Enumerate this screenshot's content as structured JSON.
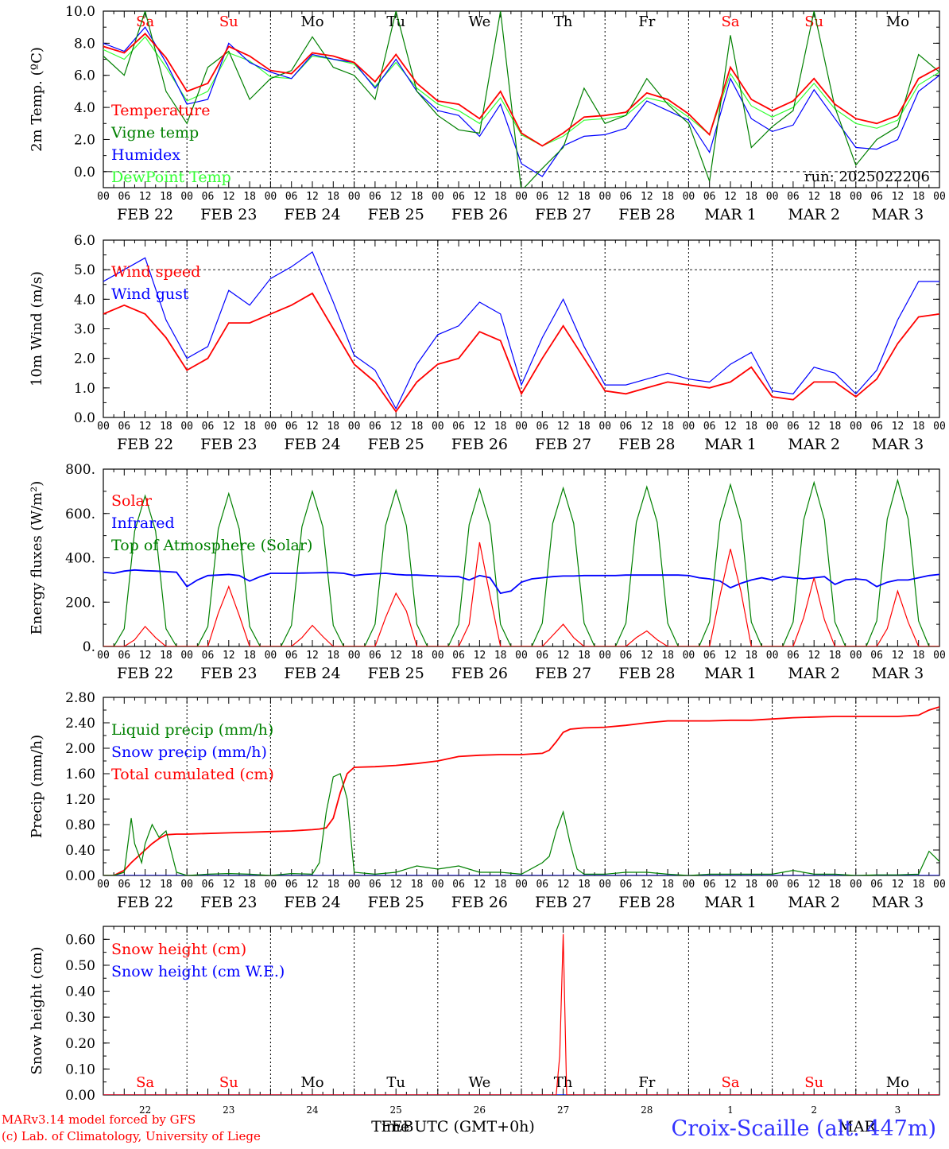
{
  "run_label": "run: 2025022206",
  "footer": {
    "model": "MARv3.14 model forced by GFS",
    "copyright": "(c) Lab. of Climatology, University of Liege",
    "xlabel": "Time UTC (GMT+0h)",
    "station": "Croix-Scaille (alt. 447m)",
    "feb_label": "FEB",
    "mar_label": "MAR"
  },
  "colors": {
    "red": "#ff0000",
    "green": "#008000",
    "blue": "#0000ff",
    "lightgreen": "#33ff33"
  },
  "days": {
    "weekday": [
      "Sa",
      "Su",
      "Mo",
      "Tu",
      "We",
      "Th",
      "Fr",
      "Sa",
      "Su",
      "Mo"
    ],
    "weekday_red": [
      true,
      true,
      false,
      false,
      false,
      false,
      false,
      true,
      true,
      false
    ],
    "date_labels": [
      "FEB 22",
      "FEB 23",
      "FEB 24",
      "FEB 25",
      "FEB 26",
      "FEB 27",
      "FEB 28",
      "MAR  1",
      "MAR  2",
      "MAR  3"
    ],
    "day_numbers": [
      "22",
      "23",
      "24",
      "25",
      "26",
      "27",
      "28",
      "1",
      "2",
      "3"
    ],
    "hour_ticks": [
      "00",
      "06",
      "12",
      "18"
    ],
    "last_tick": "00"
  },
  "chart_data": [
    {
      "type": "line",
      "ylabel": "2m Temp. (ºC)",
      "ylim": [
        -1.0,
        10.0
      ],
      "yticks": [
        "10.0",
        "8.0",
        "6.0",
        "4.0",
        "2.0",
        "0.0"
      ],
      "ytick_values": [
        10,
        8,
        6,
        4,
        2,
        0
      ],
      "x_hours": [
        0,
        6,
        12,
        18,
        24,
        30,
        36,
        42,
        48,
        54,
        60,
        66,
        72,
        78,
        84,
        90,
        96,
        102,
        108,
        114,
        120,
        126,
        132,
        138,
        144,
        150,
        156,
        162,
        168,
        174,
        180,
        186,
        192,
        198,
        204,
        210,
        216,
        222,
        228,
        234,
        240
      ],
      "series": [
        {
          "name": "Temperature",
          "color": "#ff0000",
          "values": [
            7.8,
            7.4,
            8.6,
            7.1,
            5.0,
            5.5,
            7.8,
            7.2,
            6.3,
            6.1,
            7.4,
            7.2,
            6.8,
            5.6,
            7.3,
            5.5,
            4.4,
            4.2,
            3.3,
            5.0,
            2.4,
            1.6,
            2.4,
            3.4,
            3.5,
            3.7,
            4.9,
            4.5,
            3.6,
            2.3,
            6.5,
            4.5,
            3.8,
            4.4,
            5.8,
            4.2,
            3.3,
            3.0,
            3.5,
            5.8,
            6.5
          ]
        },
        {
          "name": "Vigne temp",
          "color": "#008000",
          "values": [
            7.2,
            6.0,
            10.0,
            5.0,
            3.0,
            6.5,
            7.5,
            4.5,
            5.8,
            6.3,
            8.4,
            6.5,
            6.0,
            4.5,
            10.0,
            5.0,
            3.5,
            2.6,
            2.4,
            10.0,
            -1.2,
            0.2,
            1.5,
            5.2,
            3.0,
            3.5,
            5.8,
            4.2,
            3.0,
            -0.6,
            8.5,
            1.5,
            2.8,
            3.8,
            10.0,
            4.0,
            0.4,
            2.0,
            2.8,
            7.3,
            6.2
          ]
        },
        {
          "name": "Humidex",
          "color": "#0000ff",
          "values": [
            8.0,
            7.5,
            9.0,
            6.8,
            4.2,
            4.5,
            8.0,
            6.8,
            6.2,
            5.8,
            7.3,
            7.0,
            6.8,
            5.2,
            7.0,
            5.0,
            3.8,
            3.5,
            2.2,
            4.2,
            0.5,
            -0.3,
            1.6,
            2.2,
            2.3,
            2.7,
            4.4,
            3.8,
            3.2,
            1.2,
            5.8,
            3.3,
            2.5,
            2.9,
            5.1,
            3.3,
            1.5,
            1.4,
            2.0,
            5.0,
            6.0
          ]
        },
        {
          "name": "DewPoint Temp",
          "color": "#33ff33",
          "values": [
            7.6,
            7.0,
            8.4,
            6.5,
            4.4,
            5.0,
            7.4,
            6.9,
            5.9,
            5.8,
            7.2,
            7.0,
            6.7,
            5.3,
            6.8,
            5.2,
            4.2,
            3.8,
            3.0,
            4.6,
            2.3,
            1.6,
            2.2,
            3.2,
            3.3,
            3.5,
            4.6,
            4.3,
            3.4,
            2.3,
            6.1,
            4.1,
            3.4,
            4.0,
            5.5,
            3.9,
            3.0,
            2.7,
            3.2,
            5.4,
            6.2
          ]
        }
      ]
    },
    {
      "type": "line",
      "ylabel": "10m Wind (m/s)",
      "ylim": [
        0,
        6.0
      ],
      "yticks": [
        "6.0",
        "5.0",
        "4.0",
        "3.0",
        "2.0",
        "1.0",
        "0.0"
      ],
      "ytick_values": [
        6,
        5,
        4,
        3,
        2,
        1,
        0
      ],
      "x_hours": [
        0,
        6,
        12,
        18,
        24,
        30,
        36,
        42,
        48,
        54,
        60,
        66,
        72,
        78,
        84,
        90,
        96,
        102,
        108,
        114,
        120,
        126,
        132,
        138,
        144,
        150,
        156,
        162,
        168,
        174,
        180,
        186,
        192,
        198,
        204,
        210,
        216,
        222,
        228,
        234,
        240
      ],
      "series": [
        {
          "name": "Wind speed",
          "color": "#ff0000",
          "values": [
            3.5,
            3.8,
            3.5,
            2.7,
            1.6,
            2.0,
            3.2,
            3.2,
            3.5,
            3.8,
            4.2,
            3.0,
            1.8,
            1.2,
            0.2,
            1.2,
            1.8,
            2.0,
            2.9,
            2.6,
            0.8,
            2.0,
            3.1,
            2.0,
            0.9,
            0.8,
            1.0,
            1.2,
            1.1,
            1.0,
            1.2,
            1.7,
            0.7,
            0.6,
            1.2,
            1.2,
            0.7,
            1.3,
            2.5,
            3.4,
            3.5
          ]
        },
        {
          "name": "Wind gust",
          "color": "#0000ff",
          "values": [
            4.6,
            5.0,
            5.4,
            3.3,
            2.0,
            2.4,
            4.3,
            3.8,
            4.7,
            5.1,
            5.6,
            3.9,
            2.1,
            1.6,
            0.3,
            1.8,
            2.8,
            3.1,
            3.9,
            3.5,
            1.1,
            2.7,
            4.0,
            2.4,
            1.1,
            1.1,
            1.3,
            1.5,
            1.3,
            1.2,
            1.8,
            2.2,
            0.9,
            0.8,
            1.7,
            1.5,
            0.8,
            1.6,
            3.3,
            4.6,
            4.6
          ]
        }
      ]
    },
    {
      "type": "line",
      "ylabel": "Energy fluxes (W/m²)",
      "ylim": [
        0,
        800
      ],
      "yticks": [
        "800.",
        "600.",
        "400.",
        "200.",
        "0."
      ],
      "ytick_values": [
        800,
        600,
        400,
        200,
        0
      ],
      "x_hours": [
        0,
        3,
        6,
        9,
        12,
        15,
        18,
        21,
        24,
        27,
        30,
        33,
        36,
        39,
        42,
        45,
        48,
        51,
        54,
        57,
        60,
        63,
        66,
        69,
        72,
        75,
        78,
        81,
        84,
        87,
        90,
        93,
        96,
        99,
        102,
        105,
        108,
        111,
        114,
        117,
        120,
        123,
        126,
        129,
        132,
        135,
        138,
        141,
        144,
        147,
        150,
        153,
        156,
        159,
        162,
        165,
        168,
        171,
        174,
        177,
        180,
        183,
        186,
        189,
        192,
        195,
        198,
        201,
        204,
        207,
        210,
        213,
        216,
        219,
        222,
        225,
        228,
        231,
        234,
        237,
        240
      ],
      "series": [
        {
          "name": "Solar",
          "color": "#ff0000",
          "values": [
            0,
            0,
            0,
            30,
            90,
            40,
            0,
            0,
            0,
            0,
            0,
            150,
            270,
            140,
            0,
            0,
            0,
            0,
            0,
            40,
            95,
            45,
            0,
            0,
            0,
            0,
            0,
            130,
            240,
            160,
            0,
            0,
            0,
            0,
            0,
            100,
            470,
            230,
            0,
            0,
            0,
            0,
            0,
            50,
            100,
            40,
            0,
            0,
            0,
            0,
            0,
            40,
            70,
            30,
            0,
            0,
            0,
            0,
            0,
            230,
            440,
            250,
            0,
            0,
            0,
            0,
            0,
            130,
            310,
            120,
            0,
            0,
            0,
            0,
            0,
            80,
            250,
            110,
            0,
            0,
            0
          ]
        },
        {
          "name": "Infrared",
          "color": "#0000ff",
          "values": [
            335,
            330,
            340,
            345,
            342,
            340,
            338,
            335,
            270,
            300,
            320,
            322,
            325,
            320,
            295,
            315,
            330,
            330,
            330,
            331,
            332,
            333,
            333,
            330,
            320,
            325,
            328,
            330,
            325,
            322,
            322,
            320,
            318,
            316,
            315,
            300,
            320,
            310,
            240,
            250,
            290,
            305,
            310,
            315,
            318,
            318,
            320,
            320,
            320,
            320,
            322,
            322,
            322,
            322,
            322,
            322,
            320,
            310,
            305,
            295,
            265,
            285,
            300,
            310,
            300,
            315,
            310,
            305,
            310,
            315,
            280,
            300,
            305,
            300,
            270,
            290,
            300,
            300,
            310,
            320,
            325
          ]
        },
        {
          "name": "Top of Atmosphere (Solar)",
          "color": "#008000",
          "values": [
            0,
            0,
            80,
            520,
            680,
            520,
            80,
            0,
            0,
            0,
            90,
            530,
            690,
            530,
            90,
            0,
            0,
            0,
            95,
            540,
            700,
            540,
            95,
            0,
            0,
            0,
            100,
            545,
            705,
            545,
            100,
            0,
            0,
            0,
            100,
            550,
            710,
            550,
            100,
            0,
            0,
            0,
            105,
            555,
            715,
            555,
            105,
            0,
            0,
            0,
            105,
            560,
            720,
            560,
            105,
            0,
            0,
            0,
            110,
            565,
            730,
            565,
            110,
            0,
            0,
            0,
            110,
            570,
            740,
            570,
            110,
            0,
            0,
            0,
            115,
            575,
            750,
            575,
            115,
            0,
            0
          ]
        }
      ]
    },
    {
      "type": "line",
      "ylabel": "Precip (mm/h)",
      "ylim": [
        0,
        2.8
      ],
      "yticks": [
        "2.80",
        "2.40",
        "2.00",
        "1.60",
        "1.20",
        "0.80",
        "0.40",
        "0.00"
      ],
      "ytick_values": [
        2.8,
        2.4,
        2.0,
        1.6,
        1.2,
        0.8,
        0.4,
        0.0
      ],
      "x_hours": [
        0,
        3,
        6,
        8,
        9,
        11,
        12,
        14,
        16,
        18,
        21,
        24,
        30,
        36,
        42,
        48,
        54,
        60,
        62,
        64,
        66,
        68,
        70,
        72,
        78,
        84,
        90,
        96,
        102,
        108,
        114,
        120,
        126,
        128,
        130,
        132,
        134,
        136,
        138,
        144,
        150,
        156,
        162,
        168,
        174,
        180,
        186,
        192,
        198,
        204,
        210,
        216,
        222,
        228,
        234,
        237,
        240
      ],
      "series": [
        {
          "name": "Liquid precip (mm/h)",
          "color": "#008000",
          "values": [
            0,
            0,
            0.05,
            0.9,
            0.5,
            0.2,
            0.5,
            0.8,
            0.6,
            0.7,
            0.05,
            0,
            0.02,
            0.03,
            0.02,
            0,
            0.03,
            0.02,
            0.2,
            1.0,
            1.55,
            1.6,
            1.2,
            0.05,
            0.02,
            0.05,
            0.15,
            0.1,
            0.15,
            0.05,
            0.05,
            0.02,
            0.2,
            0.3,
            0.7,
            1.0,
            0.5,
            0.1,
            0.02,
            0.02,
            0.05,
            0.05,
            0.02,
            0,
            0.02,
            0.02,
            0.02,
            0.02,
            0.08,
            0.02,
            0.02,
            0,
            0.01,
            0.01,
            0.02,
            0.38,
            0.22
          ]
        },
        {
          "name": "Snow precip (mm/h)",
          "color": "#0000ff",
          "values": [
            0,
            0,
            0,
            0,
            0,
            0,
            0,
            0,
            0,
            0,
            0,
            0,
            0,
            0,
            0,
            0,
            0,
            0,
            0,
            0,
            0,
            0,
            0,
            0,
            0,
            0,
            0,
            0,
            0,
            0,
            0,
            0,
            0,
            0,
            0,
            0,
            0,
            0,
            0,
            0,
            0,
            0,
            0,
            0,
            0,
            0,
            0,
            0,
            0,
            0,
            0,
            0,
            0,
            0,
            0,
            0,
            0
          ]
        },
        {
          "name": "Total cumulated (cm)",
          "color": "#ff0000",
          "values": [
            0,
            0,
            0.08,
            0.2,
            0.25,
            0.35,
            0.4,
            0.5,
            0.58,
            0.64,
            0.65,
            0.65,
            0.66,
            0.67,
            0.68,
            0.69,
            0.7,
            0.72,
            0.73,
            0.75,
            0.9,
            1.3,
            1.6,
            1.7,
            1.71,
            1.73,
            1.76,
            1.8,
            1.87,
            1.89,
            1.9,
            1.9,
            1.92,
            1.97,
            2.1,
            2.25,
            2.3,
            2.31,
            2.32,
            2.33,
            2.36,
            2.4,
            2.43,
            2.43,
            2.43,
            2.44,
            2.44,
            2.46,
            2.48,
            2.49,
            2.5,
            2.5,
            2.5,
            2.5,
            2.52,
            2.6,
            2.65
          ]
        }
      ]
    },
    {
      "type": "line",
      "ylabel": "Snow height (cm)",
      "ylim": [
        0,
        0.65
      ],
      "yticks": [
        "0.60",
        "0.50",
        "0.40",
        "0.30",
        "0.20",
        "0.10",
        "0.00"
      ],
      "ytick_values": [
        0.6,
        0.5,
        0.4,
        0.3,
        0.2,
        0.1,
        0.0
      ],
      "x_hours": [
        0,
        130,
        131,
        132,
        133,
        240
      ],
      "series": [
        {
          "name": "Snow height (cm)",
          "color": "#ff0000",
          "values": [
            0,
            0,
            0.15,
            0.62,
            0,
            0
          ]
        },
        {
          "name": "Snow height (cm W.E.)",
          "color": "#0000ff",
          "values": [
            0,
            0,
            0,
            0,
            0,
            0
          ]
        }
      ]
    }
  ]
}
